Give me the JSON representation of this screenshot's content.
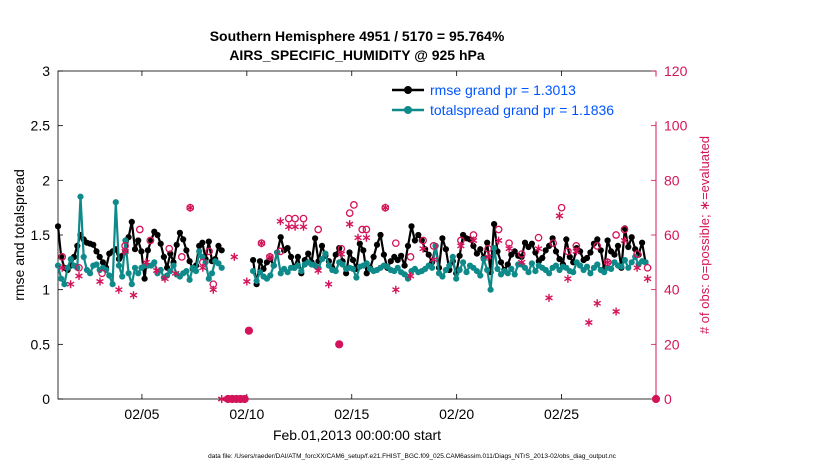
{
  "chart_data": {
    "type": "line",
    "title": "Southern Hemisphere 4951 / 5170 = 95.764%",
    "subtitle": "AIRS_SPECIFIC_HUMIDITY @ 925 hPa",
    "xlabel": "Feb.01,2013 00:00:00 start",
    "ylabel": "rmse and totalspread",
    "ylabel_right": "# of obs: o=possible; ∗=evaluated",
    "footnote": "data file: /Users/raeder/DAI/ATM_forcXX/CAM6_setup/f.e21.FHIST_BGC.f09_025.CAM6assim.011/Diags_NTrS_2013-02/obs_diag_output.nc",
    "x_range_days": [
      1,
      29.5
    ],
    "ylim": [
      0,
      3
    ],
    "ylim_right": [
      0,
      120
    ],
    "yticks": [
      "0",
      "0.5",
      "1",
      "1.5",
      "2",
      "2.5",
      "3"
    ],
    "yticks_right": [
      "0",
      "20",
      "40",
      "60",
      "80",
      "100",
      "120"
    ],
    "xticks": [
      {
        "day": 5,
        "label": "02/05"
      },
      {
        "day": 10,
        "label": "02/10"
      },
      {
        "day": 15,
        "label": "02/15"
      },
      {
        "day": 20,
        "label": "02/20"
      },
      {
        "day": 25,
        "label": "02/25"
      }
    ],
    "gap_days": [
      8.8,
      10.3
    ],
    "series": [
      {
        "name": "rmse grand pr = 1.3013",
        "color": "#000000",
        "segments": [
          [
            1.58,
            1.3,
            1.2,
            1.18,
            1.22,
            1.3,
            1.4,
            1.5,
            1.46,
            1.43,
            1.42,
            1.41,
            1.35,
            1.3,
            1.25,
            1.2,
            1.33,
            1.35,
            1.37,
            1.28,
            1.31,
            1.35,
            1.48,
            1.62,
            1.37,
            1.45,
            1.35,
            1.1,
            1.36,
            1.45,
            1.53,
            1.5,
            1.42,
            1.3,
            1.2,
            1.33,
            1.25,
            1.41,
            1.52,
            1.46,
            1.36,
            1.26,
            1.19,
            1.22,
            1.4,
            1.43,
            1.28,
            1.44,
            1.26,
            1.28,
            1.4,
            1.36
          ],
          [
            1.27,
            1.05,
            1.26,
            1.19,
            1.25,
            1.28,
            1.22,
            1.34,
            1.48,
            1.36,
            1.38,
            1.3,
            1.2,
            1.3,
            1.15,
            1.27,
            1.33,
            1.25,
            1.47,
            1.26,
            1.4,
            1.31,
            1.26,
            1.2,
            1.32,
            1.38,
            1.26,
            1.15,
            1.34,
            1.27,
            1.19,
            1.42,
            1.36,
            1.15,
            1.2,
            1.3,
            1.41,
            1.5,
            1.32,
            1.2,
            1.26,
            1.3,
            1.27,
            1.31,
            1.22,
            1.4,
            1.58,
            1.45,
            1.5,
            1.45,
            1.37,
            1.32,
            1.25,
            1.4,
            1.2,
            1.47,
            1.37,
            1.18,
            1.26,
            1.15,
            1.31,
            1.5,
            1.47,
            1.46,
            1.4,
            1.33,
            1.37,
            1.29,
            1.43,
            1.16,
            1.6,
            1.35,
            1.25,
            1.18,
            1.23,
            1.32,
            1.35,
            1.31,
            1.3,
            1.43,
            1.39,
            1.42,
            1.34,
            1.26,
            1.29,
            1.36,
            1.4,
            1.47,
            1.35,
            1.28,
            1.23,
            1.46,
            1.3,
            1.25,
            1.38,
            1.35,
            1.27,
            1.29,
            1.34,
            1.42,
            1.46,
            1.36,
            1.19,
            1.45,
            1.35,
            1.32,
            1.4,
            1.2,
            1.56,
            1.39,
            1.48,
            1.37,
            1.32,
            1.43,
            1.25
          ]
        ]
      },
      {
        "name": "totalspread grand pr = 1.1836",
        "color": "#0f8a8a",
        "segments": [
          [
            1.22,
            1.1,
            1.05,
            1.2,
            1.28,
            1.22,
            1.2,
            1.85,
            1.3,
            1.18,
            1.15,
            1.22,
            1.23,
            1.18,
            1.2,
            1.18,
            1.13,
            1.05,
            1.8,
            1.22,
            1.12,
            1.45,
            1.15,
            1.05,
            1.2,
            1.15,
            1.2,
            1.22,
            1.22,
            1.22,
            1.25,
            1.15,
            1.18,
            1.11,
            1.13,
            1.17,
            1.22,
            1.14,
            1.12,
            1.15,
            1.17,
            1.09,
            1.2,
            1.17,
            1.35,
            1.3,
            1.25,
            1.1,
            1.15,
            1.26,
            1.24,
            1.2
          ],
          [
            1.17,
            1.08,
            1.16,
            1.12,
            1.1,
            1.13,
            1.22,
            1.34,
            1.15,
            1.19,
            1.16,
            1.2,
            1.2,
            1.22,
            1.17,
            1.23,
            1.25,
            1.23,
            1.22,
            1.2,
            1.28,
            1.33,
            1.22,
            1.18,
            1.17,
            1.25,
            1.23,
            1.19,
            1.2,
            1.19,
            1.11,
            1.21,
            1.22,
            1.24,
            1.19,
            1.17,
            1.18,
            1.2,
            1.22,
            1.21,
            1.18,
            1.17,
            1.2,
            1.16,
            1.14,
            1.1,
            1.17,
            1.19,
            1.16,
            1.17,
            1.19,
            1.22,
            1.2,
            1.4,
            1.15,
            1.12,
            1.18,
            1.22,
            1.3,
            1.1,
            1.18,
            1.25,
            1.16,
            1.22,
            1.2,
            1.17,
            1.13,
            1.28,
            1.18,
            1.0,
            1.38,
            1.19,
            1.14,
            1.17,
            1.15,
            1.19,
            1.14,
            1.23,
            1.23,
            1.2,
            1.16,
            1.24,
            1.17,
            1.22,
            1.2,
            1.18,
            1.15,
            1.2,
            1.22,
            1.18,
            1.21,
            1.2,
            1.17,
            1.16,
            1.25,
            1.22,
            1.18,
            1.21,
            1.15,
            1.2,
            1.23,
            1.18,
            1.16,
            1.2,
            1.19,
            1.25,
            1.22,
            1.21,
            1.27,
            1.2,
            1.25,
            1.3,
            1.23,
            1.26,
            1.25
          ]
        ]
      }
    ],
    "obs_possible": [
      [
        1.2,
        52
      ],
      [
        2.0,
        48
      ],
      [
        3.1,
        46
      ],
      [
        4.2,
        56
      ],
      [
        4.9,
        62
      ],
      [
        5.4,
        58
      ],
      [
        6.3,
        55
      ],
      [
        6.9,
        52
      ],
      [
        7.3,
        70
      ],
      [
        7.9,
        50
      ],
      [
        8.2,
        54
      ],
      [
        8.4,
        42
      ],
      [
        10.7,
        57
      ],
      [
        11.1,
        52
      ],
      [
        11.6,
        54
      ],
      [
        12.0,
        66
      ],
      [
        12.3,
        66
      ],
      [
        12.7,
        66
      ],
      [
        13.4,
        62
      ],
      [
        14.5,
        55
      ],
      [
        14.9,
        68
      ],
      [
        15.1,
        71
      ],
      [
        15.5,
        62
      ],
      [
        15.7,
        62
      ],
      [
        16.6,
        70
      ],
      [
        17.1,
        57
      ],
      [
        17.8,
        52
      ],
      [
        18.4,
        58
      ],
      [
        18.9,
        56
      ],
      [
        20.2,
        58
      ],
      [
        20.8,
        60
      ],
      [
        21.5,
        55
      ],
      [
        22.0,
        62
      ],
      [
        22.5,
        57
      ],
      [
        23.1,
        53
      ],
      [
        23.9,
        59
      ],
      [
        24.6,
        57
      ],
      [
        25.0,
        70
      ],
      [
        25.3,
        54
      ],
      [
        25.7,
        56
      ],
      [
        26.7,
        56
      ],
      [
        27.2,
        50
      ],
      [
        27.6,
        60
      ],
      [
        28.0,
        62
      ],
      [
        28.6,
        53
      ],
      [
        29.1,
        48
      ]
    ],
    "obs_evaluated": [
      [
        1.2,
        48
      ],
      [
        1.6,
        42
      ],
      [
        2.0,
        45
      ],
      [
        3.0,
        43
      ],
      [
        3.9,
        40
      ],
      [
        4.2,
        54
      ],
      [
        4.6,
        38
      ],
      [
        5.2,
        50
      ],
      [
        5.7,
        47
      ],
      [
        6.1,
        44
      ],
      [
        6.6,
        46
      ],
      [
        7.3,
        70
      ],
      [
        7.9,
        48
      ],
      [
        8.4,
        40
      ],
      [
        8.8,
        0
      ],
      [
        9.4,
        52
      ],
      [
        10.0,
        43
      ],
      [
        10.7,
        57
      ],
      [
        11.1,
        52
      ],
      [
        11.6,
        65
      ],
      [
        12.0,
        63
      ],
      [
        12.3,
        63
      ],
      [
        12.7,
        63
      ],
      [
        13.4,
        47
      ],
      [
        13.9,
        42
      ],
      [
        14.5,
        53
      ],
      [
        14.9,
        64
      ],
      [
        15.3,
        59
      ],
      [
        15.7,
        59
      ],
      [
        16.6,
        70
      ],
      [
        17.1,
        40
      ],
      [
        17.8,
        45
      ],
      [
        18.4,
        55
      ],
      [
        18.9,
        51
      ],
      [
        20.2,
        56
      ],
      [
        20.8,
        58
      ],
      [
        21.5,
        52
      ],
      [
        22.0,
        58
      ],
      [
        22.5,
        55
      ],
      [
        23.1,
        50
      ],
      [
        23.9,
        55
      ],
      [
        24.4,
        37
      ],
      [
        24.9,
        67
      ],
      [
        25.3,
        44
      ],
      [
        25.7,
        54
      ],
      [
        26.3,
        28
      ],
      [
        26.7,
        35
      ],
      [
        27.2,
        50
      ],
      [
        27.6,
        32
      ],
      [
        28.0,
        58
      ],
      [
        28.6,
        48
      ],
      [
        29.1,
        44
      ]
    ],
    "obs_low_markers": [
      [
        9.1,
        0
      ],
      [
        9.3,
        0
      ],
      [
        9.5,
        0
      ],
      [
        9.7,
        0
      ],
      [
        9.9,
        0
      ],
      [
        10.1,
        25
      ],
      [
        14.4,
        20
      ],
      [
        29.5,
        0
      ]
    ]
  }
}
